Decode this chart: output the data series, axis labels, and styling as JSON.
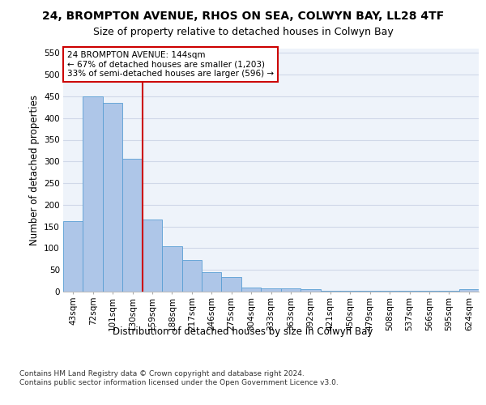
{
  "title_line1": "24, BROMPTON AVENUE, RHOS ON SEA, COLWYN BAY, LL28 4TF",
  "title_line2": "Size of property relative to detached houses in Colwyn Bay",
  "xlabel": "Distribution of detached houses by size in Colwyn Bay",
  "ylabel": "Number of detached properties",
  "categories": [
    "43sqm",
    "72sqm",
    "101sqm",
    "130sqm",
    "159sqm",
    "188sqm",
    "217sqm",
    "246sqm",
    "275sqm",
    "304sqm",
    "333sqm",
    "363sqm",
    "392sqm",
    "421sqm",
    "450sqm",
    "479sqm",
    "508sqm",
    "537sqm",
    "566sqm",
    "595sqm",
    "624sqm"
  ],
  "values": [
    163,
    450,
    435,
    307,
    166,
    105,
    73,
    44,
    33,
    10,
    8,
    8,
    5,
    2,
    1,
    1,
    1,
    1,
    1,
    1,
    5
  ],
  "bar_color": "#aec6e8",
  "bar_edge_color": "#5a9fd4",
  "vline_x": 3.5,
  "vline_color": "#cc0000",
  "annotation_title": "24 BROMPTON AVENUE: 144sqm",
  "annotation_line1": "← 67% of detached houses are smaller (1,203)",
  "annotation_line2": "33% of semi-detached houses are larger (596) →",
  "annotation_box_color": "#ffffff",
  "annotation_box_edge": "#cc0000",
  "ylim": [
    0,
    560
  ],
  "yticks": [
    0,
    50,
    100,
    150,
    200,
    250,
    300,
    350,
    400,
    450,
    500,
    550
  ],
  "footer": "Contains HM Land Registry data © Crown copyright and database right 2024.\nContains public sector information licensed under the Open Government Licence v3.0.",
  "bg_color": "#eef3fa",
  "grid_color": "#d0d8e8",
  "title_fontsize": 10,
  "subtitle_fontsize": 9,
  "axis_label_fontsize": 8.5,
  "tick_fontsize": 7.5,
  "footer_fontsize": 6.5
}
